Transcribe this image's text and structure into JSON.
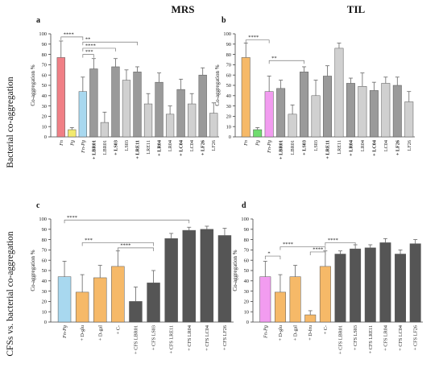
{
  "headers": {
    "left": "MRS",
    "right": "TIL"
  },
  "row_labels": {
    "top": "Bacterial co-aggregation",
    "bottom": "CFSs vs. bacterial co-aggregation"
  },
  "chart_data": [
    {
      "panel": "a",
      "type": "bar",
      "ylabel": "Co-aggregation %",
      "ylim": [
        0,
        100
      ],
      "yticks": [
        0,
        10,
        20,
        30,
        40,
        50,
        60,
        70,
        80,
        90,
        100
      ],
      "bars": [
        {
          "label": "Fn",
          "value": 77,
          "err": 16,
          "color": "#f07f85",
          "italic": true
        },
        {
          "label": "Pg",
          "value": 7,
          "err": 2,
          "color": "#f2ea6e",
          "italic": true
        },
        {
          "label": "Fn-Pg",
          "value": 44,
          "err": 14,
          "color": "#a8d8ef",
          "italic": true
        },
        {
          "label": "+ LBR01",
          "value": 66,
          "err": 10,
          "color": "#9a9a9a",
          "bold": true
        },
        {
          "label": "LBR01",
          "value": 14,
          "err": 10,
          "color": "#d0d0d0"
        },
        {
          "label": "+ LS03",
          "value": 68,
          "err": 8,
          "color": "#9a9a9a",
          "bold": true
        },
        {
          "label": "LS03",
          "value": 55,
          "err": 10,
          "color": "#d0d0d0"
        },
        {
          "label": "+ LRE11",
          "value": 63,
          "err": 5,
          "color": "#9a9a9a",
          "bold": true
        },
        {
          "label": "LRE11",
          "value": 32,
          "err": 10,
          "color": "#d0d0d0"
        },
        {
          "label": "+ LR04",
          "value": 53,
          "err": 9,
          "color": "#9a9a9a",
          "bold": true
        },
        {
          "label": "LR04",
          "value": 22,
          "err": 8,
          "color": "#d0d0d0"
        },
        {
          "label": "+ LC04",
          "value": 46,
          "err": 10,
          "color": "#9a9a9a",
          "bold": true
        },
        {
          "label": "LC04",
          "value": 32,
          "err": 10,
          "color": "#d0d0d0"
        },
        {
          "label": "+ LF26",
          "value": 60,
          "err": 7,
          "color": "#9a9a9a",
          "bold": true
        },
        {
          "label": "LF26",
          "value": 23,
          "err": 10,
          "color": "#d0d0d0"
        }
      ],
      "brackets": [
        {
          "from": 0,
          "to": 2,
          "label": "****",
          "y": 97
        },
        {
          "from": 2,
          "to": 7,
          "label": "**",
          "y": 92
        },
        {
          "from": 2,
          "to": 5,
          "label": "****",
          "y": 86
        },
        {
          "from": 2,
          "to": 3,
          "label": "***",
          "y": 80
        }
      ]
    },
    {
      "panel": "b",
      "type": "bar",
      "ylabel": "Co-aggregation %",
      "ylim": [
        0,
        100
      ],
      "yticks": [
        0,
        10,
        20,
        30,
        40,
        50,
        60,
        70,
        80,
        90,
        100
      ],
      "bars": [
        {
          "label": "Fn",
          "value": 77,
          "err": 14,
          "color": "#f6b968",
          "italic": true
        },
        {
          "label": "Pg",
          "value": 7,
          "err": 2,
          "color": "#6fdc6f",
          "italic": true
        },
        {
          "label": "Fn-Pg",
          "value": 44,
          "err": 15,
          "color": "#f29cf0",
          "italic": true
        },
        {
          "label": "+ LBR01",
          "value": 47,
          "err": 8,
          "color": "#9a9a9a",
          "bold": true
        },
        {
          "label": "LBR01",
          "value": 22,
          "err": 9,
          "color": "#d0d0d0"
        },
        {
          "label": "+ LS03",
          "value": 63,
          "err": 5,
          "color": "#9a9a9a",
          "bold": true
        },
        {
          "label": "LS03",
          "value": 40,
          "err": 15,
          "color": "#d0d0d0"
        },
        {
          "label": "+ LRE11",
          "value": 59,
          "err": 10,
          "color": "#9a9a9a",
          "bold": true
        },
        {
          "label": "LRE11",
          "value": 86,
          "err": 5,
          "color": "#d0d0d0"
        },
        {
          "label": "+ LR04",
          "value": 52,
          "err": 5,
          "color": "#9a9a9a",
          "bold": true
        },
        {
          "label": "LR04",
          "value": 49,
          "err": 13,
          "color": "#d0d0d0"
        },
        {
          "label": "+ LC04",
          "value": 45,
          "err": 8,
          "color": "#9a9a9a",
          "bold": true
        },
        {
          "label": "LC04",
          "value": 52,
          "err": 6,
          "color": "#d0d0d0"
        },
        {
          "label": "+ LF26",
          "value": 50,
          "err": 8,
          "color": "#9a9a9a",
          "bold": true
        },
        {
          "label": "LF26",
          "value": 34,
          "err": 10,
          "color": "#d0d0d0"
        }
      ],
      "brackets": [
        {
          "from": 0,
          "to": 2,
          "label": "****",
          "y": 94
        },
        {
          "from": 2,
          "to": 5,
          "label": "**",
          "y": 74
        }
      ]
    },
    {
      "panel": "c",
      "type": "bar",
      "ylabel": "Co-aggregation %",
      "ylim": [
        0,
        100
      ],
      "yticks": [
        0,
        10,
        20,
        30,
        40,
        50,
        60,
        70,
        80,
        90,
        100
      ],
      "bars": [
        {
          "label": "Fn-Pg",
          "value": 44,
          "err": 15,
          "color": "#a8d8ef",
          "italic": true
        },
        {
          "label": "+ D-glu",
          "value": 29,
          "err": 17,
          "color": "#f6b968"
        },
        {
          "label": "+ D-gal",
          "value": 43,
          "err": 12,
          "color": "#f6b968"
        },
        {
          "label": "+ C-",
          "value": 54,
          "err": 15,
          "color": "#f6b968"
        },
        {
          "label": "+ CFS LBR01",
          "value": 20,
          "err": 14,
          "color": "#555555"
        },
        {
          "label": "+ CFS LS03",
          "value": 38,
          "err": 12,
          "color": "#555555"
        },
        {
          "label": "+ CFS LRE11",
          "value": 81,
          "err": 5,
          "color": "#555555"
        },
        {
          "label": "+ CFS LR04",
          "value": 89,
          "err": 3,
          "color": "#555555"
        },
        {
          "label": "+ CFS LC04",
          "value": 90,
          "err": 3,
          "color": "#555555"
        },
        {
          "label": "+ CFS LF26",
          "value": 84,
          "err": 7,
          "color": "#555555"
        }
      ],
      "brackets": [
        {
          "from": 0,
          "to": 7,
          "label": "****",
          "y": 99
        },
        {
          "from": 1,
          "to": 5,
          "label": "***",
          "y": 77
        },
        {
          "from": 3,
          "to": 5,
          "label": "****",
          "y": 72
        }
      ]
    },
    {
      "panel": "d",
      "type": "bar",
      "ylabel": "Co-aggregation %",
      "ylim": [
        0,
        100
      ],
      "yticks": [
        0,
        10,
        20,
        30,
        40,
        50,
        60,
        70,
        80,
        90,
        100
      ],
      "bars": [
        {
          "label": "Fn-Pg",
          "value": 44,
          "err": 15,
          "color": "#f29cf0",
          "italic": true
        },
        {
          "label": "+ D-glu",
          "value": 29,
          "err": 17,
          "color": "#f6b968"
        },
        {
          "label": "+ D-gal",
          "value": 44,
          "err": 11,
          "color": "#f6b968"
        },
        {
          "label": "+ D-fru",
          "value": 7,
          "err": 4,
          "color": "#f6b968"
        },
        {
          "label": "+ C-",
          "value": 54,
          "err": 15,
          "color": "#f6b968"
        },
        {
          "label": "+ CFS LBR01",
          "value": 66,
          "err": 3,
          "color": "#555555"
        },
        {
          "label": "+ CFS LS03",
          "value": 71,
          "err": 4,
          "color": "#555555"
        },
        {
          "label": "+ CFS LRE11",
          "value": 72,
          "err": 3,
          "color": "#555555"
        },
        {
          "label": "+ CFS LR04",
          "value": 77,
          "err": 4,
          "color": "#555555"
        },
        {
          "label": "+ CFS LC04",
          "value": 66,
          "err": 4,
          "color": "#555555"
        },
        {
          "label": "+ CFS LF26",
          "value": 76,
          "err": 4,
          "color": "#555555"
        }
      ],
      "brackets": [
        {
          "from": 0,
          "to": 1,
          "label": "*",
          "y": 64
        },
        {
          "from": 1,
          "to": 4,
          "label": "****",
          "y": 73
        },
        {
          "from": 3,
          "to": 4,
          "label": "****",
          "y": 68
        },
        {
          "from": 4,
          "to": 6,
          "label": "****",
          "y": 77
        }
      ]
    }
  ]
}
